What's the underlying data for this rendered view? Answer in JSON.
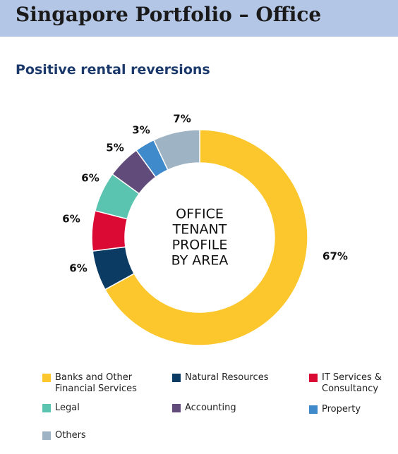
{
  "header": {
    "title": "Singapore Portfolio – Office",
    "subtitle": "Positive rental reversions"
  },
  "chart_data": {
    "type": "pie",
    "center_text": [
      "OFFICE",
      "TENANT",
      "PROFILE",
      "BY AREA"
    ],
    "series": [
      {
        "name": "Banks and Other\nFinancial Services",
        "value": 67,
        "label": "67%",
        "color": "#fcc72c"
      },
      {
        "name": "Natural Resources",
        "value": 6,
        "label": "6%",
        "color": "#0b3a63"
      },
      {
        "name": "IT Services &\nConsultancy",
        "value": 6,
        "label": "6%",
        "color": "#db0a34"
      },
      {
        "name": "Legal",
        "value": 6,
        "label": "6%",
        "color": "#5bc4b1"
      },
      {
        "name": "Accounting",
        "value": 5,
        "label": "5%",
        "color": "#614b7a"
      },
      {
        "name": "Property",
        "value": 3,
        "label": "3%",
        "color": "#3f8acb"
      },
      {
        "name": "Others",
        "value": 7,
        "label": "7%",
        "color": "#9eb4c5"
      }
    ],
    "legend_placement": "bottom"
  }
}
